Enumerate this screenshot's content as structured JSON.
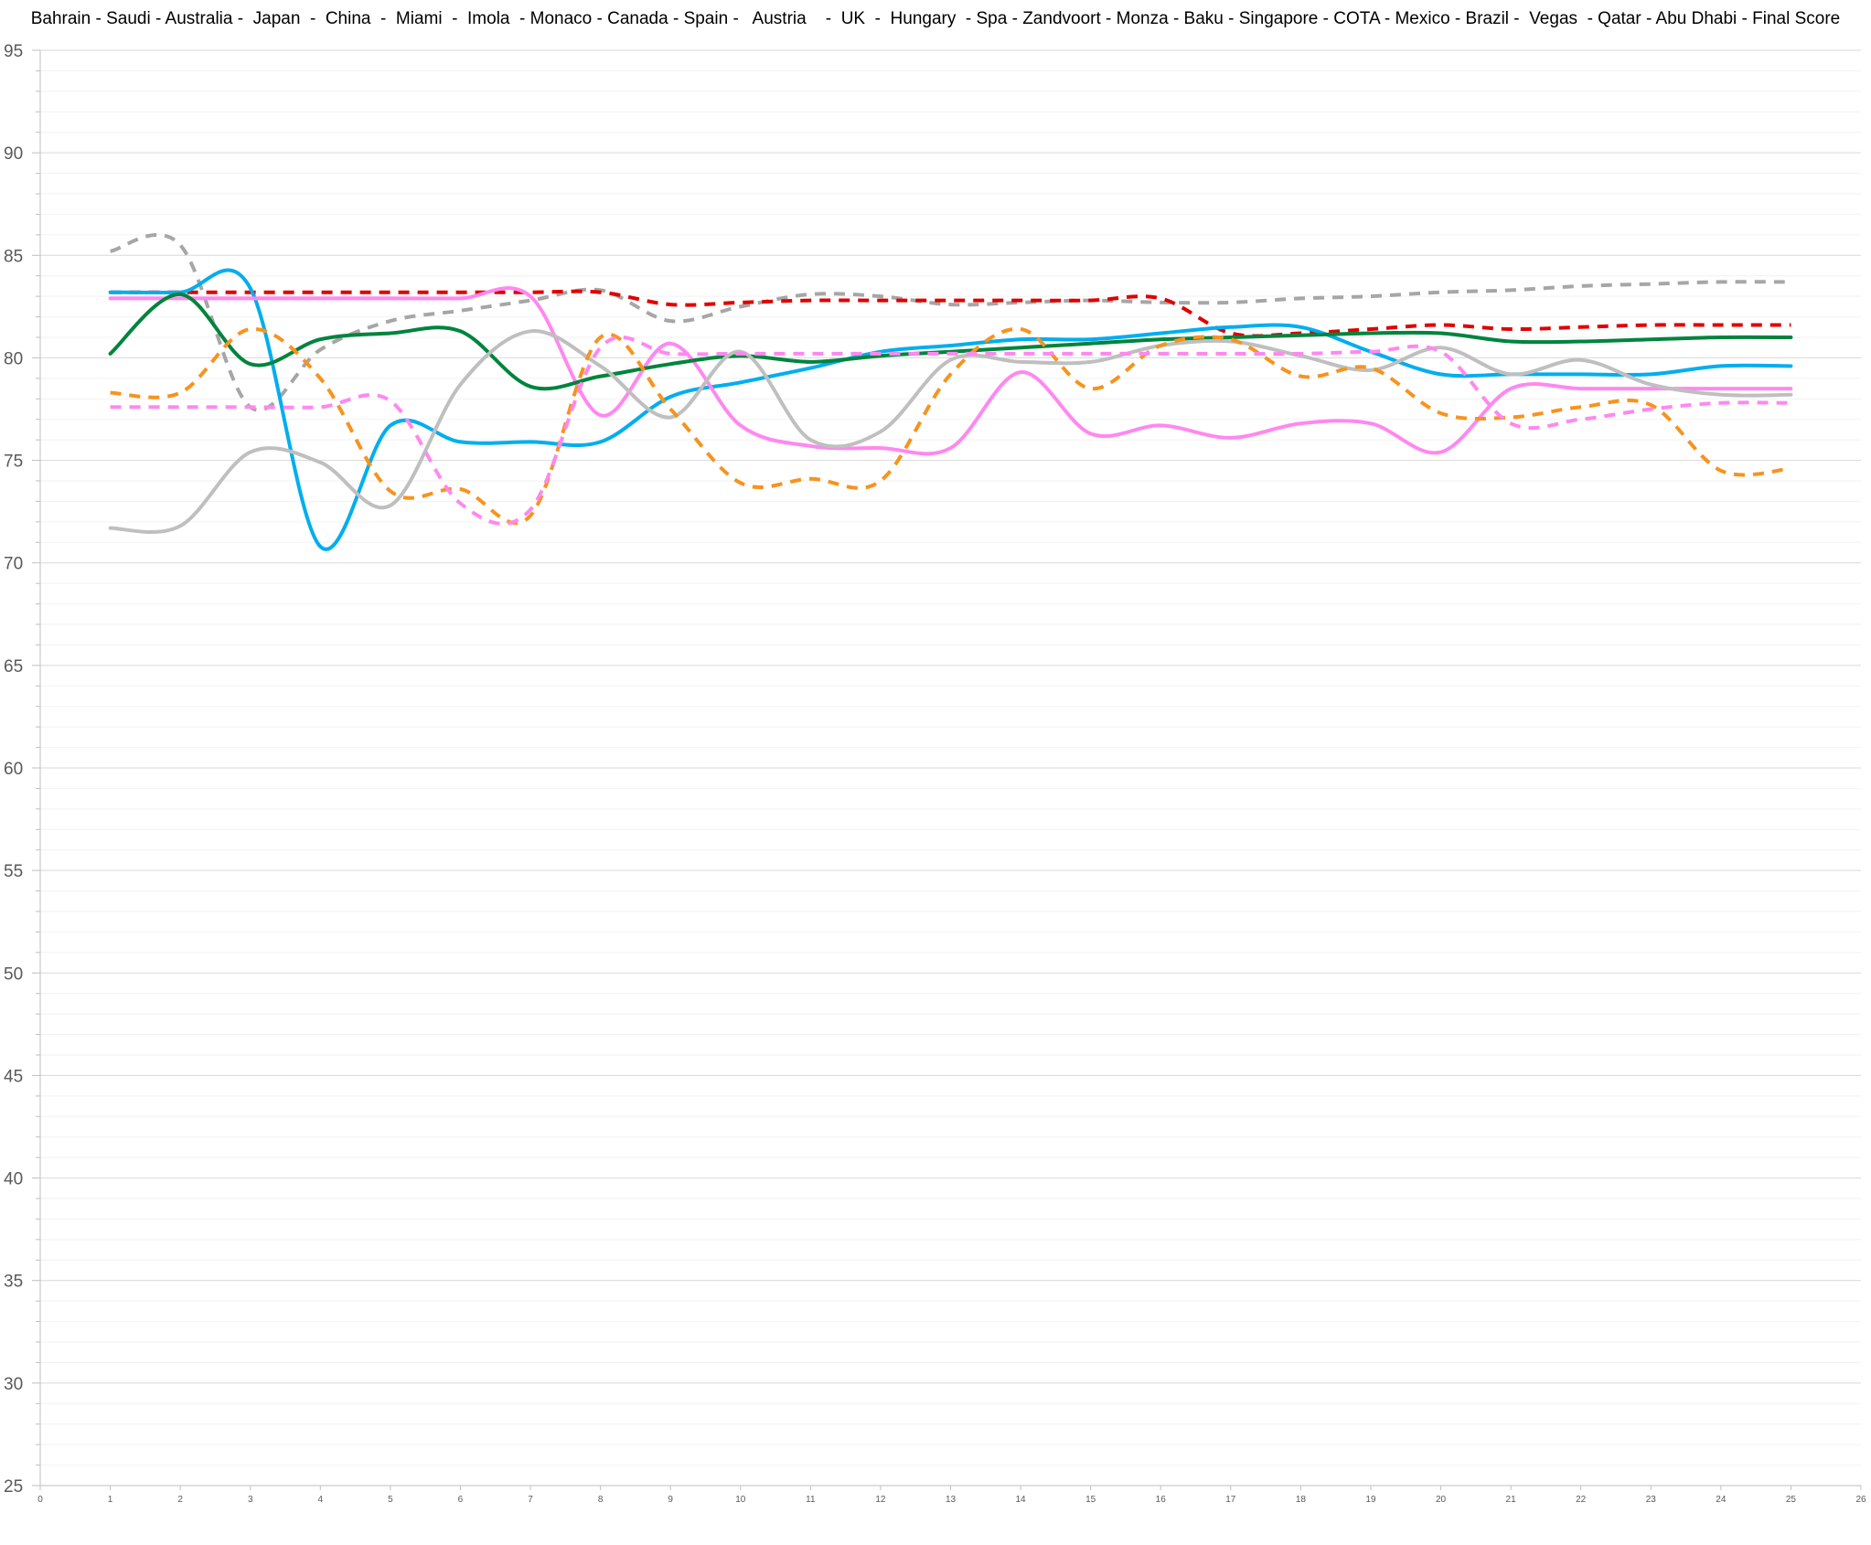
{
  "chart_data": {
    "type": "line",
    "title": "Bahrain - Saudi - Australia -  Japan  -  China  -  Miami  -  Imola  - Monaco - Canada - Spain -   Austria    -  UK  -  Hungary  - Spa - Zandvoort - Monza - Baku - Singapore - COTA - Mexico - Brazil -  Vegas  - Qatar - Abu Dhabi - Final Score",
    "xlabel": "",
    "ylabel": "",
    "xlim": [
      0,
      26
    ],
    "ylim": [
      25,
      95
    ],
    "y_ticks": [
      25,
      30,
      35,
      40,
      45,
      50,
      55,
      60,
      65,
      70,
      75,
      80,
      85,
      90,
      95
    ],
    "x_ticks": [
      0,
      1,
      2,
      3,
      4,
      5,
      6,
      7,
      8,
      9,
      10,
      11,
      12,
      13,
      14,
      15,
      16,
      17,
      18,
      19,
      20,
      21,
      22,
      23,
      24,
      25,
      26
    ],
    "grid": true,
    "legend": "none",
    "x": [
      1,
      2,
      3,
      4,
      5,
      6,
      7,
      8,
      9,
      10,
      11,
      12,
      13,
      14,
      15,
      16,
      17,
      18,
      19,
      20,
      21,
      22,
      23,
      24,
      25
    ],
    "series": [
      {
        "color": "#a6a6a6",
        "dash": "dashed",
        "values": [
          85.2,
          85.5,
          77.6,
          80.4,
          81.8,
          82.3,
          82.8,
          83.3,
          81.8,
          82.5,
          83.1,
          83.0,
          82.6,
          82.7,
          82.8,
          82.7,
          82.7,
          82.9,
          83.0,
          83.2,
          83.3,
          83.5,
          83.6,
          83.7,
          83.7
        ]
      },
      {
        "color": "#e00000",
        "dash": "dashed",
        "values": [
          83.2,
          83.2,
          83.2,
          83.2,
          83.2,
          83.2,
          83.2,
          83.2,
          82.6,
          82.7,
          82.8,
          82.8,
          82.8,
          82.8,
          82.8,
          82.9,
          81.2,
          81.2,
          81.4,
          81.6,
          81.4,
          81.5,
          81.6,
          81.6,
          81.6
        ]
      },
      {
        "color": "#00aeef",
        "dash": "solid",
        "values": [
          83.2,
          83.2,
          83.4,
          70.8,
          76.7,
          75.9,
          75.9,
          75.9,
          78.1,
          78.8,
          79.5,
          80.3,
          80.6,
          80.9,
          80.9,
          81.2,
          81.5,
          81.5,
          80.3,
          79.2,
          79.2,
          79.2,
          79.2,
          79.6,
          79.6
        ]
      },
      {
        "color": "#ff88f0",
        "dash": "solid",
        "values": [
          82.9,
          82.9,
          82.9,
          82.9,
          82.9,
          82.9,
          83.0,
          77.2,
          80.7,
          76.7,
          75.7,
          75.6,
          75.6,
          79.3,
          76.3,
          76.7,
          76.1,
          76.8,
          76.8,
          75.4,
          78.5,
          78.5,
          78.5,
          78.5,
          78.5
        ]
      },
      {
        "color": "#00843d",
        "dash": "solid",
        "values": [
          80.2,
          83.1,
          79.7,
          80.9,
          81.2,
          81.3,
          78.6,
          79.1,
          79.7,
          80.1,
          79.8,
          80.1,
          80.3,
          80.5,
          80.7,
          80.9,
          81.0,
          81.1,
          81.2,
          81.2,
          80.8,
          80.8,
          80.9,
          81.0,
          81.0
        ]
      },
      {
        "color": "#bfbfbf",
        "dash": "solid",
        "values": [
          71.7,
          71.8,
          75.4,
          74.9,
          72.8,
          78.7,
          81.3,
          79.6,
          77.1,
          80.3,
          76.0,
          76.4,
          79.9,
          79.8,
          79.8,
          80.6,
          80.8,
          80.1,
          79.4,
          80.5,
          79.2,
          79.9,
          78.7,
          78.2,
          78.2
        ]
      },
      {
        "color": "#f7931e",
        "dash": "dashed",
        "values": [
          78.3,
          78.3,
          81.4,
          79.0,
          73.5,
          73.6,
          72.3,
          81.0,
          77.5,
          73.9,
          74.1,
          74.0,
          79.2,
          81.4,
          78.5,
          80.6,
          80.9,
          79.1,
          79.5,
          77.3,
          77.1,
          77.6,
          77.7,
          74.5,
          74.6
        ]
      },
      {
        "color": "#ff88f0",
        "dash": "dashed",
        "values": [
          77.6,
          77.6,
          77.6,
          77.6,
          77.9,
          72.9,
          72.6,
          80.5,
          80.2,
          80.2,
          80.2,
          80.2,
          80.2,
          80.2,
          80.2,
          80.2,
          80.2,
          80.2,
          80.3,
          80.3,
          76.8,
          77.0,
          77.5,
          77.8,
          77.8
        ]
      }
    ]
  }
}
